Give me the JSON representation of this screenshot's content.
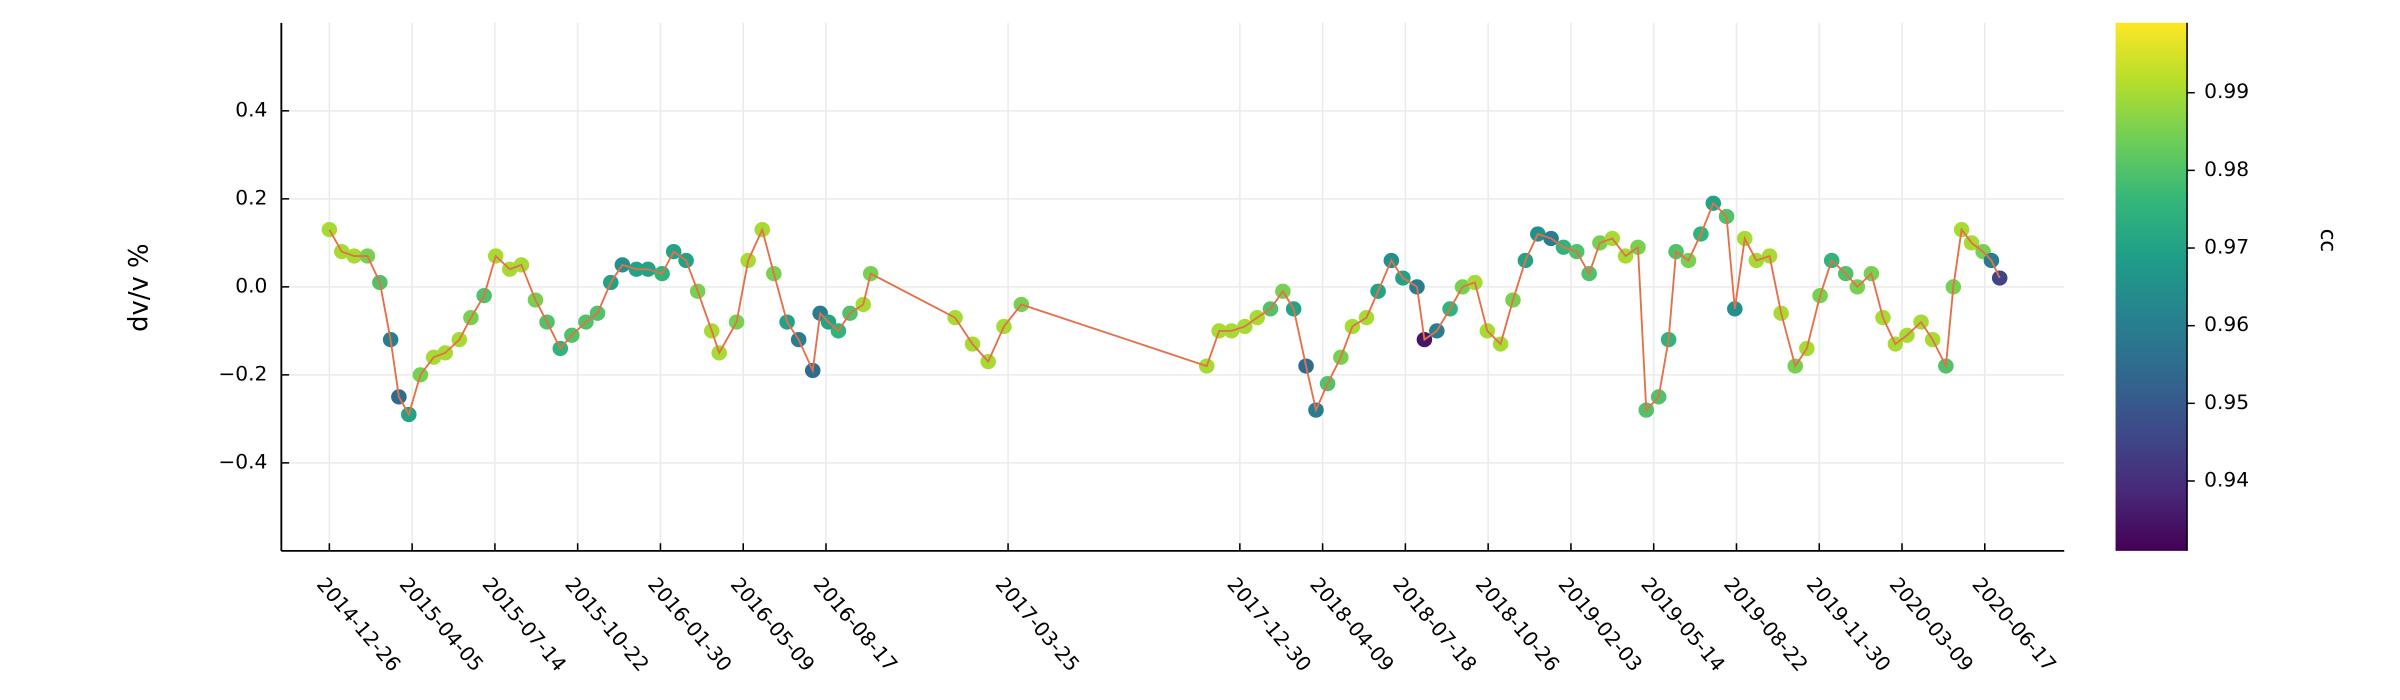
{
  "chart_data": {
    "type": "scatter-line",
    "ylabel": "dv/v %",
    "colorbar_label": "cc",
    "colormap": "viridis",
    "line_color": "#e4704a",
    "grid": true,
    "xlim": [
      "2014-10-29",
      "2020-09-21"
    ],
    "xticks": [
      "2014-12-26",
      "2015-04-05",
      "2015-07-14",
      "2015-10-22",
      "2016-01-30",
      "2016-05-09",
      "2016-08-17",
      "2017-03-25",
      "2017-12-30",
      "2018-04-09",
      "2018-07-18",
      "2018-10-26",
      "2019-02-03",
      "2019-05-14",
      "2019-08-22",
      "2019-11-30",
      "2020-03-09",
      "2020-06-17"
    ],
    "ylim": [
      -0.6,
      0.6
    ],
    "yticks": [
      {
        "value": -0.4,
        "label": "−0.4"
      },
      {
        "value": -0.2,
        "label": "−0.2"
      },
      {
        "value": 0,
        "label": "0.0"
      },
      0.2,
      0.4
    ],
    "clim": [
      0.931,
      0.999
    ],
    "cticks": [
      0.94,
      0.95,
      0.96,
      0.97,
      0.98,
      0.99
    ],
    "x": [
      "2014-12-26",
      "2015-01-10",
      "2015-01-25",
      "2015-02-10",
      "2015-02-25",
      "2015-03-10",
      "2015-03-20",
      "2015-04-01",
      "2015-04-15",
      "2015-05-01",
      "2015-05-15",
      "2015-06-01",
      "2015-06-15",
      "2015-07-01",
      "2015-07-15",
      "2015-08-01",
      "2015-08-15",
      "2015-09-01",
      "2015-09-15",
      "2015-10-01",
      "2015-10-15",
      "2015-11-01",
      "2015-11-15",
      "2015-12-01",
      "2015-12-15",
      "2016-01-01",
      "2016-01-15",
      "2016-02-01",
      "2016-02-15",
      "2016-03-01",
      "2016-03-15",
      "2016-04-01",
      "2016-04-10",
      "2016-05-01",
      "2016-05-15",
      "2016-06-01",
      "2016-06-15",
      "2016-07-01",
      "2016-07-15",
      "2016-08-01",
      "2016-08-10",
      "2016-08-20",
      "2016-09-01",
      "2016-09-15",
      "2016-10-01",
      "2016-10-10",
      "2017-01-20",
      "2017-02-10",
      "2017-03-01",
      "2017-03-20",
      "2017-04-10",
      "2017-11-20",
      "2017-12-05",
      "2017-12-20",
      "2018-01-05",
      "2018-01-20",
      "2018-02-05",
      "2018-02-20",
      "2018-03-05",
      "2018-03-20",
      "2018-04-01",
      "2018-04-15",
      "2018-05-01",
      "2018-05-15",
      "2018-06-01",
      "2018-06-15",
      "2018-07-01",
      "2018-07-15",
      "2018-08-01",
      "2018-08-10",
      "2018-08-25",
      "2018-09-10",
      "2018-09-25",
      "2018-10-10",
      "2018-10-25",
      "2018-11-10",
      "2018-11-25",
      "2018-12-10",
      "2018-12-25",
      "2019-01-10",
      "2019-01-25",
      "2019-02-10",
      "2019-02-25",
      "2019-03-10",
      "2019-03-25",
      "2019-04-10",
      "2019-04-25",
      "2019-05-05",
      "2019-05-20",
      "2019-06-01",
      "2019-06-10",
      "2019-06-25",
      "2019-07-10",
      "2019-07-25",
      "2019-08-10",
      "2019-08-20",
      "2019-09-01",
      "2019-09-15",
      "2019-10-01",
      "2019-10-15",
      "2019-11-01",
      "2019-11-15",
      "2019-12-01",
      "2019-12-15",
      "2020-01-01",
      "2020-01-15",
      "2020-02-01",
      "2020-02-15",
      "2020-03-01",
      "2020-03-15",
      "2020-04-01",
      "2020-04-15",
      "2020-05-01",
      "2020-05-10",
      "2020-05-20",
      "2020-06-01",
      "2020-06-15",
      "2020-06-25",
      "2020-07-05"
    ],
    "values": [
      0.13,
      0.08,
      0.07,
      0.07,
      0.01,
      -0.12,
      -0.25,
      -0.29,
      -0.2,
      -0.16,
      -0.15,
      -0.12,
      -0.07,
      -0.02,
      0.07,
      0.04,
      0.05,
      -0.03,
      -0.08,
      -0.14,
      -0.11,
      -0.08,
      -0.06,
      0.01,
      0.05,
      0.04,
      0.04,
      0.03,
      0.08,
      0.06,
      -0.01,
      -0.1,
      -0.15,
      -0.08,
      0.06,
      0.13,
      0.03,
      -0.08,
      -0.12,
      -0.19,
      -0.06,
      -0.08,
      -0.1,
      -0.06,
      -0.04,
      0.03,
      -0.07,
      -0.13,
      -0.17,
      -0.09,
      -0.04,
      -0.18,
      -0.1,
      -0.1,
      -0.09,
      -0.07,
      -0.05,
      -0.01,
      -0.05,
      -0.18,
      -0.28,
      -0.22,
      -0.16,
      -0.09,
      -0.07,
      -0.01,
      0.06,
      0.02,
      0.0,
      -0.12,
      -0.1,
      -0.05,
      0.0,
      0.01,
      -0.1,
      -0.13,
      -0.03,
      0.06,
      0.12,
      0.11,
      0.09,
      0.08,
      0.03,
      0.1,
      0.11,
      0.07,
      0.09,
      -0.28,
      -0.25,
      -0.12,
      0.08,
      0.06,
      0.12,
      0.19,
      0.16,
      -0.05,
      0.11,
      0.06,
      0.07,
      -0.06,
      -0.18,
      -0.14,
      -0.02,
      0.06,
      0.03,
      0.0,
      0.03,
      -0.07,
      -0.13,
      -0.11,
      -0.08,
      -0.12,
      -0.18,
      0.0,
      0.13,
      0.1,
      0.08,
      0.06,
      0.02
    ],
    "cc": [
      0.99,
      0.99,
      0.99,
      0.985,
      0.98,
      0.96,
      0.955,
      0.97,
      0.985,
      0.99,
      0.99,
      0.99,
      0.985,
      0.98,
      0.99,
      0.99,
      0.99,
      0.985,
      0.98,
      0.975,
      0.98,
      0.98,
      0.98,
      0.97,
      0.965,
      0.97,
      0.97,
      0.975,
      0.97,
      0.97,
      0.985,
      0.99,
      0.99,
      0.985,
      0.99,
      0.99,
      0.985,
      0.97,
      0.96,
      0.955,
      0.96,
      0.97,
      0.975,
      0.98,
      0.99,
      0.985,
      0.99,
      0.99,
      0.99,
      0.99,
      0.985,
      0.99,
      0.99,
      0.99,
      0.99,
      0.99,
      0.98,
      0.985,
      0.97,
      0.955,
      0.96,
      0.98,
      0.985,
      0.99,
      0.99,
      0.97,
      0.965,
      0.97,
      0.96,
      0.935,
      0.96,
      0.975,
      0.985,
      0.99,
      0.99,
      0.99,
      0.985,
      0.97,
      0.965,
      0.96,
      0.975,
      0.98,
      0.98,
      0.985,
      0.99,
      0.99,
      0.985,
      0.98,
      0.98,
      0.975,
      0.98,
      0.985,
      0.975,
      0.97,
      0.98,
      0.965,
      0.99,
      0.99,
      0.99,
      0.99,
      0.985,
      0.99,
      0.985,
      0.975,
      0.98,
      0.985,
      0.985,
      0.99,
      0.99,
      0.99,
      0.99,
      0.99,
      0.98,
      0.985,
      0.99,
      0.99,
      0.985,
      0.96,
      0.945
    ]
  }
}
